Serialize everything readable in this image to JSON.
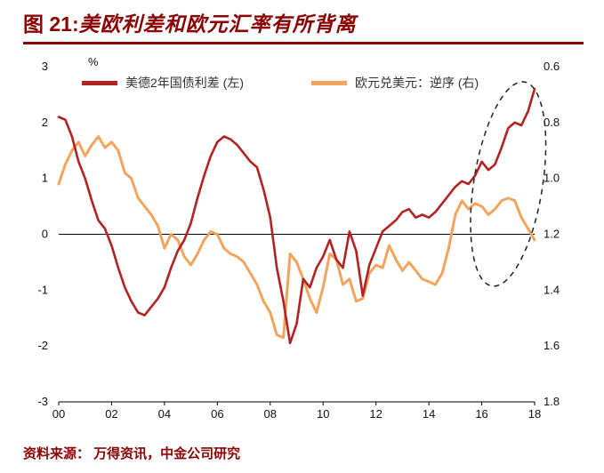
{
  "title": {
    "prefix": "图 21:",
    "main": "美欧利差和欧元汇率有所背离"
  },
  "percent_label": "%",
  "source_note": "资料来源： 万得资讯，中金公司研究",
  "colors": {
    "accent": "#8B0000",
    "spread_line": "#B22222",
    "fx_line": "#F2A45C"
  },
  "chart_data": {
    "type": "line",
    "title": "图 21:美欧利差和欧元汇率有所背离",
    "legend_position": "top",
    "grid": false,
    "x_ticks": [
      "00",
      "02",
      "04",
      "06",
      "08",
      "10",
      "12",
      "14",
      "16",
      "18"
    ],
    "x_tick_years": [
      2000,
      2002,
      2004,
      2006,
      2008,
      2010,
      2012,
      2014,
      2016,
      2018
    ],
    "left_axis": {
      "min": -3,
      "max": 3,
      "ticks": [
        3,
        2,
        1,
        0,
        -1,
        -2,
        -3
      ],
      "unit": "%"
    },
    "right_axis": {
      "min": 0.6,
      "max": 1.8,
      "ticks": [
        "0.6",
        "0.8",
        "1.0",
        "1.2",
        "1.4",
        "1.6",
        "1.8"
      ],
      "inverted": true
    },
    "series": [
      {
        "name": "美德2年国债利差 (左)",
        "axis": "left",
        "color": "#B22222",
        "width": 2.6,
        "x_start": 2000,
        "x_step": 0.25,
        "values": [
          2.1,
          2.05,
          1.75,
          1.3,
          1.0,
          0.6,
          0.25,
          0.1,
          -0.2,
          -0.6,
          -0.95,
          -1.2,
          -1.4,
          -1.45,
          -1.3,
          -1.15,
          -0.95,
          -0.6,
          -0.3,
          -0.1,
          0.2,
          0.65,
          1.05,
          1.4,
          1.65,
          1.75,
          1.7,
          1.6,
          1.45,
          1.3,
          1.2,
          0.8,
          0.3,
          -0.6,
          -1.2,
          -1.95,
          -1.6,
          -0.8,
          -0.95,
          -0.6,
          -0.4,
          -0.1,
          -0.45,
          -0.6,
          0.05,
          -0.3,
          -1.1,
          -0.55,
          -0.25,
          0.05,
          0.15,
          0.25,
          0.4,
          0.45,
          0.3,
          0.35,
          0.3,
          0.4,
          0.55,
          0.7,
          0.85,
          0.95,
          0.9,
          1.05,
          1.3,
          1.15,
          1.25,
          1.55,
          1.9,
          2.0,
          1.95,
          2.2,
          2.6
        ]
      },
      {
        "name": "欧元兑美元：逆序 (右)",
        "axis": "right",
        "color": "#F2A45C",
        "width": 3,
        "x_start": 2000,
        "x_step": 0.25,
        "values": [
          1.02,
          0.95,
          0.9,
          0.87,
          0.92,
          0.88,
          0.85,
          0.89,
          0.87,
          0.9,
          0.98,
          1.0,
          1.07,
          1.1,
          1.13,
          1.17,
          1.25,
          1.2,
          1.22,
          1.28,
          1.31,
          1.27,
          1.22,
          1.19,
          1.2,
          1.25,
          1.27,
          1.28,
          1.3,
          1.34,
          1.38,
          1.44,
          1.48,
          1.56,
          1.57,
          1.27,
          1.3,
          1.36,
          1.43,
          1.48,
          1.39,
          1.27,
          1.29,
          1.38,
          1.36,
          1.44,
          1.43,
          1.34,
          1.31,
          1.32,
          1.24,
          1.29,
          1.33,
          1.3,
          1.33,
          1.36,
          1.37,
          1.38,
          1.34,
          1.25,
          1.13,
          1.08,
          1.11,
          1.09,
          1.1,
          1.13,
          1.11,
          1.08,
          1.07,
          1.08,
          1.14,
          1.18,
          1.22
        ]
      }
    ],
    "annotation": {
      "shape": "dashed-ellipse",
      "center_year": 2017.0,
      "center_value_left": 0.9,
      "radius_years": 1.3,
      "radius_value_left": 1.85,
      "rotation_deg": 9
    }
  }
}
